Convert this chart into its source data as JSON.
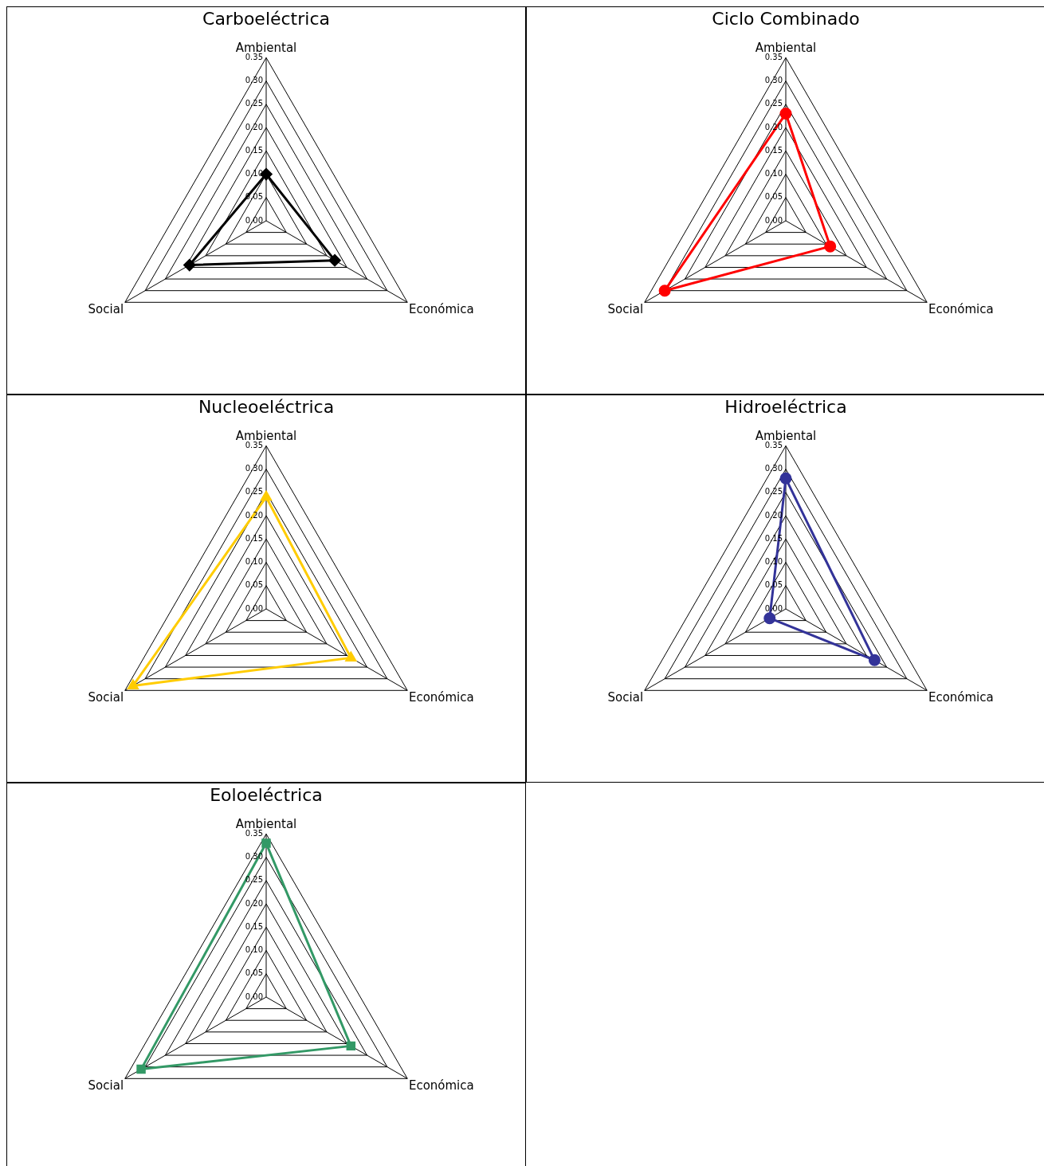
{
  "chart_data": [
    {
      "type": "radar",
      "title": "Carboeléctrica",
      "categories": [
        "Ambiental",
        "Económica",
        "Social"
      ],
      "series": [
        {
          "color": "#000000",
          "marker": "diamond",
          "values": [
            0.1,
            0.17,
            0.19
          ]
        }
      ],
      "ylim": [
        0,
        0.35
      ],
      "yticks": [
        {
          "value": 0,
          "label": "0.00"
        },
        {
          "value": 0.05,
          "label": "0.05"
        },
        {
          "value": 0.1,
          "label": "0.10"
        },
        {
          "value": 0.15,
          "label": "0.15"
        },
        {
          "value": 0.2,
          "label": "0.20"
        },
        {
          "value": 0.25,
          "label": "0.25"
        },
        {
          "value": 0.3,
          "label": "0.30"
        },
        {
          "value": 0.35,
          "label": "0.35"
        }
      ],
      "grid": true,
      "legend": false
    },
    {
      "type": "radar",
      "title": "Ciclo Combinado",
      "categories": [
        "Ambiental",
        "Económica",
        "Social"
      ],
      "series": [
        {
          "color": "#ff0000",
          "marker": "circle",
          "values": [
            0.23,
            0.11,
            0.3
          ]
        }
      ],
      "ylim": [
        0,
        0.35
      ],
      "yticks": [
        {
          "value": 0,
          "label": "0.00"
        },
        {
          "value": 0.05,
          "label": "0.05"
        },
        {
          "value": 0.1,
          "label": "0.10"
        },
        {
          "value": 0.15,
          "label": "0.15"
        },
        {
          "value": 0.2,
          "label": "0.20"
        },
        {
          "value": 0.25,
          "label": "0.25"
        },
        {
          "value": 0.3,
          "label": "0.30"
        },
        {
          "value": 0.35,
          "label": "0.35"
        }
      ],
      "grid": true,
      "legend": false
    },
    {
      "type": "radar",
      "title": "Nucleoeléctrica",
      "categories": [
        "Ambiental",
        "Económica",
        "Social"
      ],
      "series": [
        {
          "color": "#ffcc00",
          "marker": "triangle",
          "values": [
            0.24,
            0.21,
            0.33
          ]
        }
      ],
      "ylim": [
        0,
        0.35
      ],
      "yticks": [
        {
          "value": 0,
          "label": "0.00"
        },
        {
          "value": 0.05,
          "label": "0.05"
        },
        {
          "value": 0.1,
          "label": "0.10"
        },
        {
          "value": 0.15,
          "label": "0.15"
        },
        {
          "value": 0.2,
          "label": "0.20"
        },
        {
          "value": 0.25,
          "label": "0.25"
        },
        {
          "value": 0.3,
          "label": "0.30"
        },
        {
          "value": 0.35,
          "label": "0.35"
        }
      ],
      "grid": true,
      "legend": false
    },
    {
      "type": "radar",
      "title": "Hidroeléctrica",
      "categories": [
        "Ambiental",
        "Económica",
        "Social"
      ],
      "series": [
        {
          "color": "#333399",
          "marker": "circle",
          "values": [
            0.28,
            0.22,
            0.04
          ]
        }
      ],
      "ylim": [
        0,
        0.35
      ],
      "yticks": [
        {
          "value": 0,
          "label": "0.00"
        },
        {
          "value": 0.05,
          "label": "0.05"
        },
        {
          "value": 0.1,
          "label": "0.10"
        },
        {
          "value": 0.15,
          "label": "0.15"
        },
        {
          "value": 0.2,
          "label": "0.20"
        },
        {
          "value": 0.25,
          "label": "0.25"
        },
        {
          "value": 0.3,
          "label": "0.30"
        },
        {
          "value": 0.35,
          "label": "0.35"
        }
      ],
      "grid": true,
      "legend": false
    },
    {
      "type": "radar",
      "title": "Eoloeléctrica",
      "categories": [
        "Ambiental",
        "Económica",
        "Social"
      ],
      "series": [
        {
          "color": "#339966",
          "marker": "square",
          "values": [
            0.33,
            0.21,
            0.31
          ]
        }
      ],
      "ylim": [
        0,
        0.35
      ],
      "yticks": [
        {
          "value": 0,
          "label": "0.00"
        },
        {
          "value": 0.05,
          "label": "0.05"
        },
        {
          "value": 0.1,
          "label": "0.10"
        },
        {
          "value": 0.15,
          "label": "0.15"
        },
        {
          "value": 0.2,
          "label": "0.20"
        },
        {
          "value": 0.25,
          "label": "0.25"
        },
        {
          "value": 0.3,
          "label": "0.30"
        },
        {
          "value": 0.35,
          "label": "0.35"
        }
      ],
      "grid": true,
      "legend": false
    }
  ]
}
